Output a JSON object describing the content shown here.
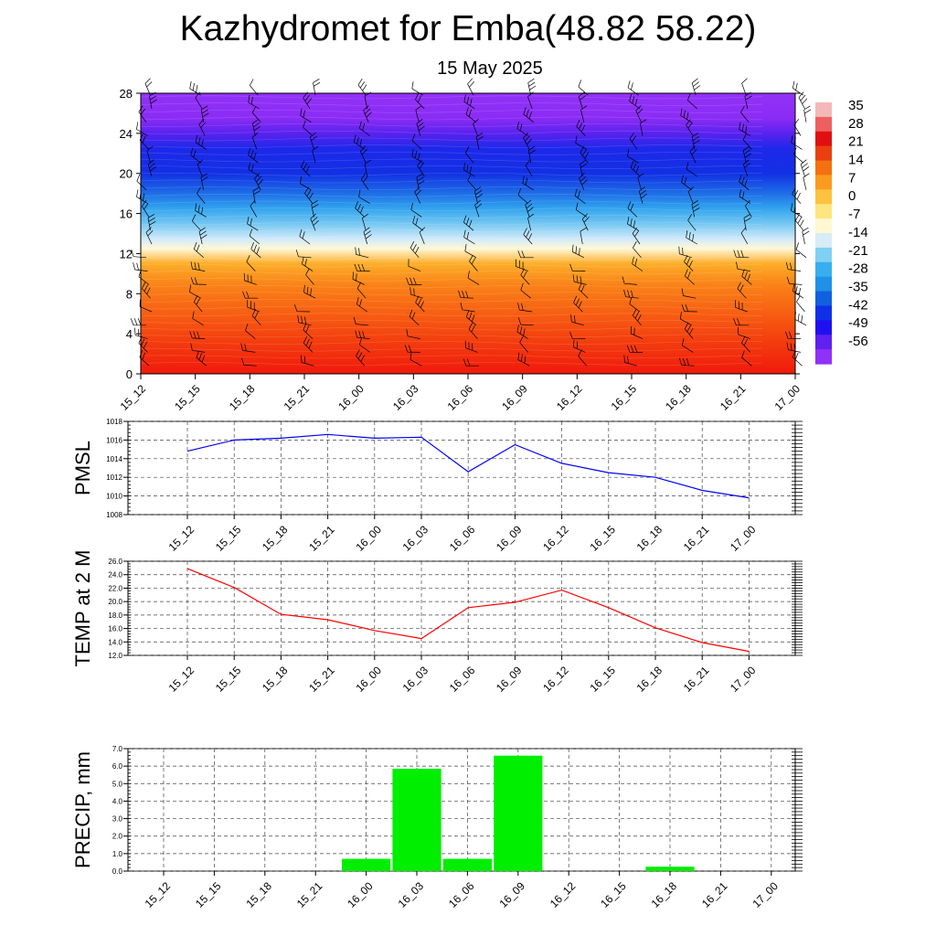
{
  "title": "Kazhydromet for Emba(48.82 58.22)",
  "subtitle": "15 May 2025",
  "time_labels": [
    "15_12",
    "15_15",
    "15_18",
    "15_21",
    "16_00",
    "16_03",
    "16_06",
    "16_09",
    "16_12",
    "16_15",
    "16_18",
    "16_21",
    "17_00"
  ],
  "chart_data": [
    {
      "type": "heatmap",
      "title": "",
      "y_ticks": [
        0,
        4,
        8,
        12,
        16,
        20,
        24,
        28
      ],
      "ylim": [
        0,
        28
      ],
      "colorbar_labels": [
        "35",
        "28",
        "21",
        "14",
        "7",
        "0",
        "-7",
        "-14",
        "-21",
        "-28",
        "-35",
        "-42",
        "-49",
        "-56"
      ],
      "colorbar_colors": [
        "#f5b8b8",
        "#ee6060",
        "#e01010",
        "#ea4010",
        "#f47010",
        "#fb9a20",
        "#fcc240",
        "#fde680",
        "#fff8d0",
        "#d8ecf8",
        "#80d0f4",
        "#38aef0",
        "#2090e8",
        "#1060e0",
        "#1030e8",
        "#2010f0",
        "#6020f0",
        "#9030f8"
      ],
      "layers": [
        {
          "level": 0,
          "color": "#f01a0c"
        },
        {
          "level": 3,
          "color": "#f33a0e"
        },
        {
          "level": 6,
          "color": "#f75e12"
        },
        {
          "level": 9,
          "color": "#fa8418"
        },
        {
          "level": 11,
          "color": "#fcae2a"
        },
        {
          "level": 12.5,
          "color": "#fff8d8"
        },
        {
          "level": 13.5,
          "color": "#cfe9fa"
        },
        {
          "level": 15,
          "color": "#74c7f2"
        },
        {
          "level": 16.5,
          "color": "#32a4ee"
        },
        {
          "level": 18,
          "color": "#1e6ee6"
        },
        {
          "level": 20,
          "color": "#1230e4"
        },
        {
          "level": 22.5,
          "color": "#1e28ea"
        },
        {
          "level": 24,
          "color": "#5a22ee"
        },
        {
          "level": 25.5,
          "color": "#8a2cf5"
        },
        {
          "level": 28,
          "color": "#9232f8"
        }
      ]
    },
    {
      "type": "line",
      "ylabel": "PMSL",
      "ylim": [
        1008,
        1018
      ],
      "y_ticks": [
        "1008",
        "1010",
        "1012",
        "1014",
        "1016",
        "1018"
      ],
      "series": [
        {
          "values": [
            1014.8,
            1016.0,
            1016.2,
            1016.6,
            1016.2,
            1016.3,
            1012.6,
            1015.5,
            1013.5,
            1012.5,
            1012.0,
            1010.6,
            1009.8
          ],
          "color": "#0000ff"
        }
      ]
    },
    {
      "type": "line",
      "ylabel": "TEMP at 2 M",
      "ylim": [
        12,
        26
      ],
      "y_ticks": [
        "12.0",
        "14.0",
        "16.0",
        "18.0",
        "20.0",
        "22.0",
        "24.0",
        "26.0"
      ],
      "series": [
        {
          "values": [
            24.9,
            22.1,
            18.1,
            17.3,
            15.7,
            14.5,
            19.1,
            19.9,
            21.7,
            19.1,
            16.1,
            13.9,
            12.6
          ],
          "color": "#ff0000"
        }
      ]
    },
    {
      "type": "bar",
      "ylabel": "PRECIP, mm",
      "ylim": [
        0,
        7
      ],
      "y_ticks": [
        "0.0",
        "1.0",
        "2.0",
        "3.0",
        "4.0",
        "5.0",
        "6.0",
        "7.0"
      ],
      "series": [
        {
          "values": [
            0,
            0,
            0,
            0,
            0.7,
            5.85,
            0.7,
            6.6,
            0,
            0,
            0.25,
            0,
            0
          ],
          "color": "#00ee00"
        }
      ]
    }
  ]
}
